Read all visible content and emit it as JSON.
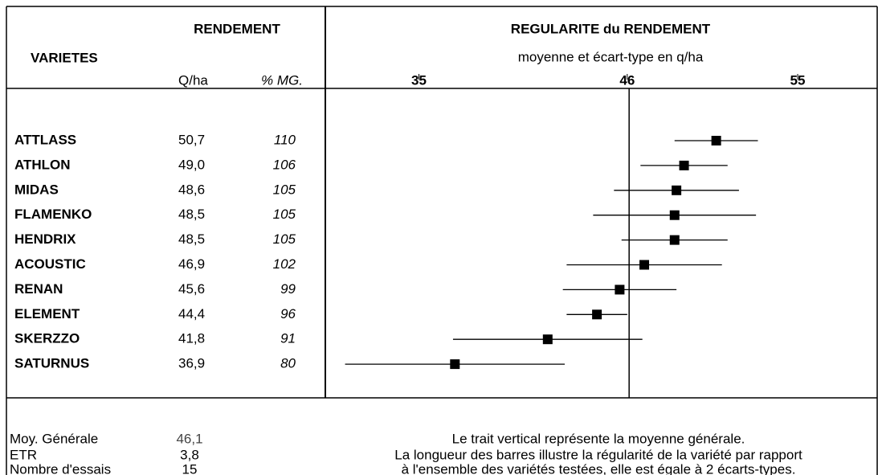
{
  "header": {
    "varietes": "VARIETES",
    "rendement": "RENDEMENT",
    "qha": "Q/ha",
    "pct": "% MG.",
    "regularite": "REGULARITE du RENDEMENT",
    "subtitle": "moyenne et écart-type en q/ha"
  },
  "chart_data": {
    "type": "errorbar",
    "categories": [
      "ATTLASS",
      "ATHLON",
      "MIDAS",
      "FLAMENKO",
      "HENDRIX",
      "ACOUSTIC",
      "RENAN",
      "ELEMENT",
      "SKERZZO",
      "SATURNUS"
    ],
    "values": [
      50.7,
      49.0,
      48.6,
      48.5,
      48.5,
      46.9,
      45.6,
      44.4,
      41.8,
      36.9
    ],
    "value_labels": [
      "50,7",
      "49,0",
      "48,6",
      "48,5",
      "48,5",
      "46,9",
      "45,6",
      "44,4",
      "41,8",
      "36,9"
    ],
    "errors": [
      2.2,
      2.3,
      3.3,
      4.3,
      2.8,
      4.1,
      3.0,
      1.6,
      5.0,
      5.8
    ],
    "percent_mg": [
      110,
      106,
      105,
      105,
      105,
      102,
      99,
      96,
      91,
      80
    ],
    "xlim": [
      30.1,
      59.2
    ],
    "xticks": [
      35,
      46,
      55
    ],
    "color": "#000000"
  },
  "summary": {
    "rows": [
      {
        "label": "Moy. Générale",
        "value": 46.1,
        "value_label": "46,1"
      },
      {
        "label": "ETR",
        "value": 3.8,
        "value_label": "3,8"
      },
      {
        "label": "Nombre d'essais",
        "value": 15
      }
    ]
  },
  "notes": [
    "Le trait vertical représente la moyenne générale.",
    "La longueur des barres illustre la régularité de la variété par rapport",
    "à l'ensemble des variétés testées, elle est égale à 2 écarts-types."
  ]
}
